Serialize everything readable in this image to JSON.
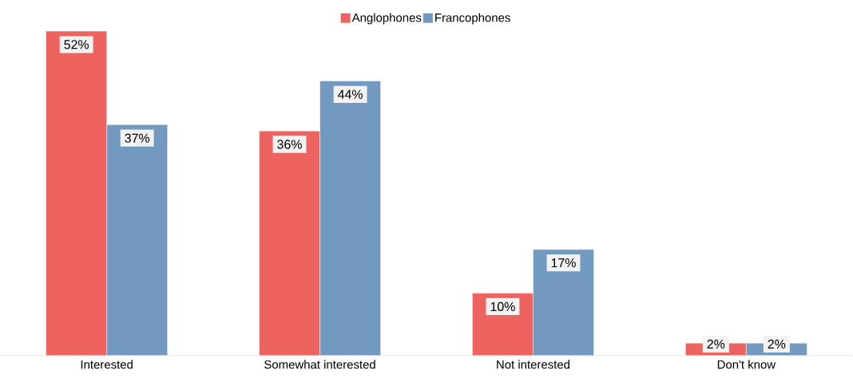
{
  "chart_data": {
    "type": "bar",
    "categories": [
      "Interested",
      "Somewhat interested",
      "Not interested",
      "Don't know"
    ],
    "series": [
      {
        "name": "Anglophones",
        "color": "#ee6360",
        "values": [
          52,
          36,
          10,
          2
        ],
        "value_labels": [
          "52%",
          "36%",
          "10%",
          "2%"
        ]
      },
      {
        "name": "Francophones",
        "color": "#7299c0",
        "values": [
          37,
          44,
          17,
          2
        ],
        "value_labels": [
          "37%",
          "44%",
          "17%",
          "2%"
        ]
      }
    ],
    "legend": "top"
  }
}
